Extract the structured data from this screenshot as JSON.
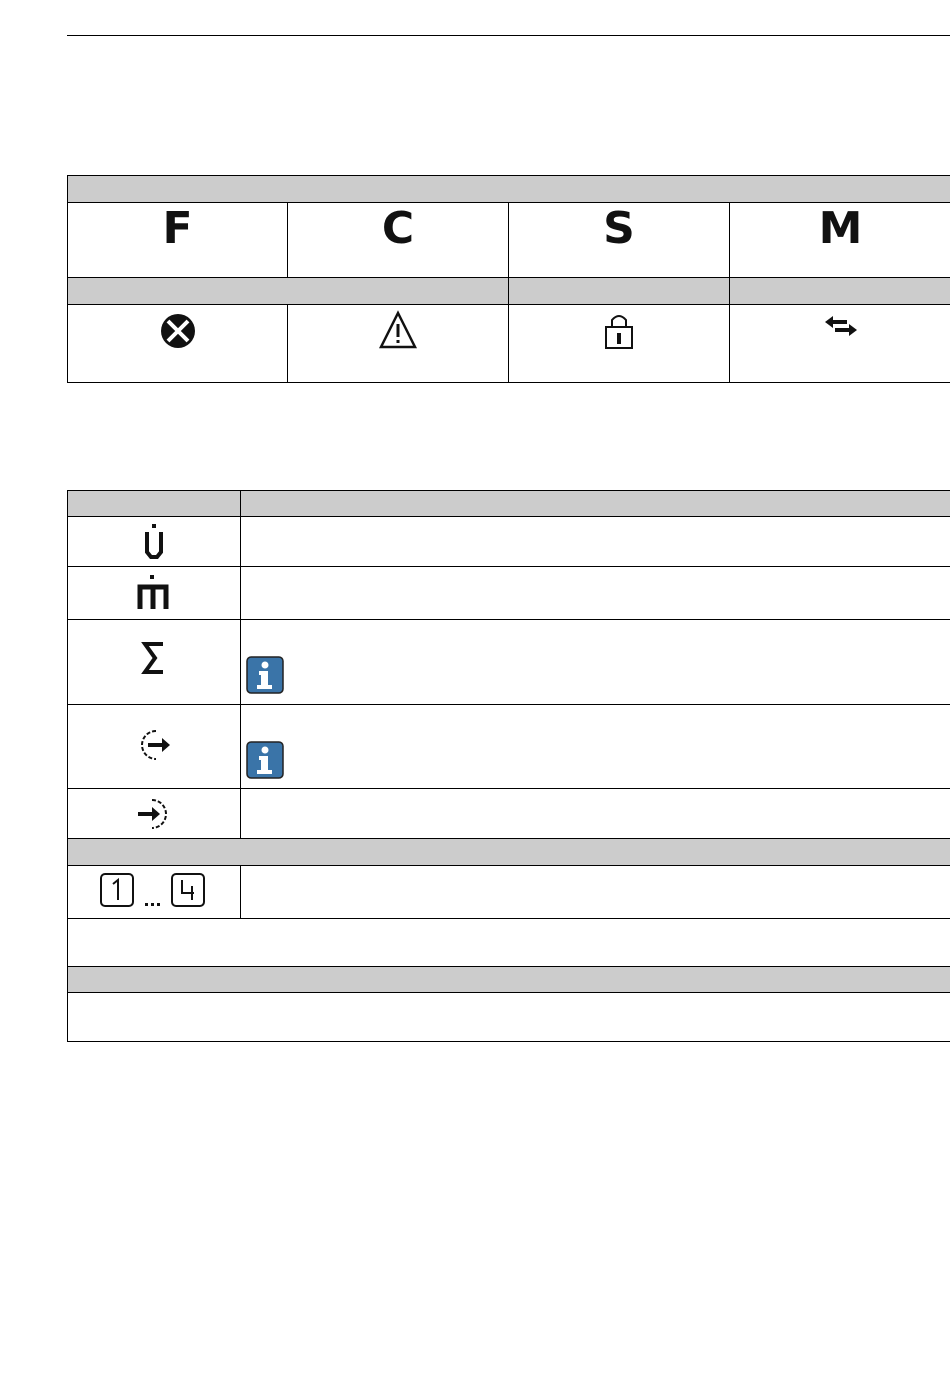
{
  "status_table": {
    "letters": [
      "F",
      "C",
      "S",
      "M"
    ],
    "icons": [
      "error-circle-x-icon",
      "warning-triangle-icon",
      "lock-icon",
      "communication-arrows-icon"
    ]
  },
  "symbol_table": {
    "rows_icons": [
      "volume-flow-icon",
      "mass-flow-icon",
      "totalizer-sigma-icon",
      "output-icon",
      "input-icon",
      "channel-1-to-4-icon"
    ],
    "note_icon": "info-icon",
    "info_color": "#3a74a8"
  }
}
